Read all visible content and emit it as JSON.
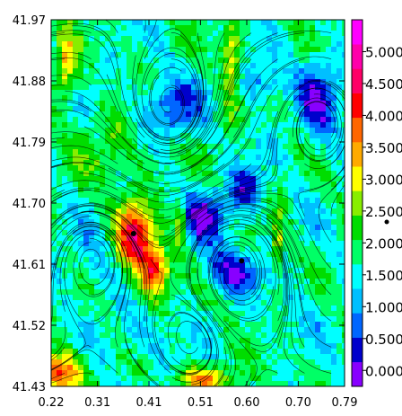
{
  "chart_data": {
    "type": "heatmap",
    "title": "",
    "xlabel": "",
    "ylabel": "",
    "xlim": [
      0.22,
      0.79
    ],
    "ylim": [
      41.43,
      41.97
    ],
    "x_ticks": [
      "0.22",
      "0.31",
      "0.41",
      "0.51",
      "0.60",
      "0.70",
      "0.79"
    ],
    "y_ticks": [
      "41.97",
      "41.88",
      "41.79",
      "41.70",
      "41.61",
      "41.52",
      "41.43"
    ],
    "colorbar": {
      "ticks": [
        "5.000",
        "4.500",
        "4.000",
        "3.500",
        "3.000",
        "2.500",
        "2.000",
        "1.500",
        "1.000",
        "0.500",
        "0.000"
      ],
      "range": [
        -0.25,
        5.5
      ],
      "colors": [
        "#8800ff",
        "#0000cc",
        "#0066ff",
        "#00bfff",
        "#00ffff",
        "#00ff66",
        "#00dd00",
        "#88ee00",
        "#ffff00",
        "#ffaa00",
        "#ff6600",
        "#ff0000",
        "#ff0066",
        "#ff00aa",
        "#ff00ff"
      ]
    },
    "field": "speed magnitude with overlaid streamlines (estimated)",
    "markers": [
      {
        "x": 0.38,
        "y": 41.655
      },
      {
        "x": 0.59,
        "y": 41.615
      }
    ],
    "outside_marker": true
  }
}
